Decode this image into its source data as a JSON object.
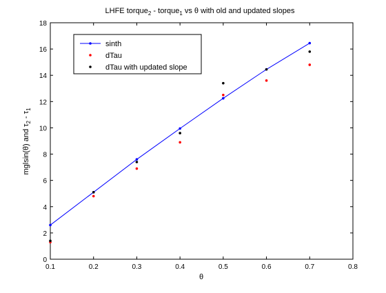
{
  "chart_data": {
    "type": "line",
    "title": {
      "main": "LHFE torque",
      "sub1": "2",
      "mid": " - torque",
      "sub2": "1",
      "rest": " vs θ with old and updated slopes"
    },
    "xlabel": "θ",
    "ylabel": {
      "p1": "mglsin(θ) and τ",
      "s1": "2",
      "p2": " - τ",
      "s2": "1"
    },
    "xlim": [
      0.1,
      0.8
    ],
    "ylim": [
      0,
      18
    ],
    "xticks": [
      "0.1",
      "0.2",
      "0.3",
      "0.4",
      "0.5",
      "0.6",
      "0.7",
      "0.8"
    ],
    "yticks": [
      "0",
      "2",
      "4",
      "6",
      "8",
      "10",
      "12",
      "14",
      "16",
      "18"
    ],
    "grid": false,
    "legend_position": "top-left",
    "series": [
      {
        "name": "sinth",
        "style": "line-dot",
        "color": "#0000ff",
        "x": [
          0.1,
          0.2,
          0.3,
          0.4,
          0.5,
          0.6,
          0.7
        ],
        "y": [
          2.6,
          5.1,
          7.6,
          9.95,
          12.25,
          14.45,
          16.45
        ]
      },
      {
        "name": "dTau",
        "style": "dot",
        "color": "#ff0000",
        "x": [
          0.1,
          0.2,
          0.3,
          0.4,
          0.5,
          0.6,
          0.7
        ],
        "y": [
          1.3,
          4.8,
          6.9,
          8.9,
          12.5,
          13.6,
          14.8
        ]
      },
      {
        "name": "dTau with updated slope",
        "style": "dot",
        "color": "#000000",
        "x": [
          0.1,
          0.2,
          0.3,
          0.4,
          0.5,
          0.6,
          0.7
        ],
        "y": [
          1.4,
          5.1,
          7.4,
          9.6,
          13.4,
          14.45,
          15.8
        ]
      }
    ]
  }
}
